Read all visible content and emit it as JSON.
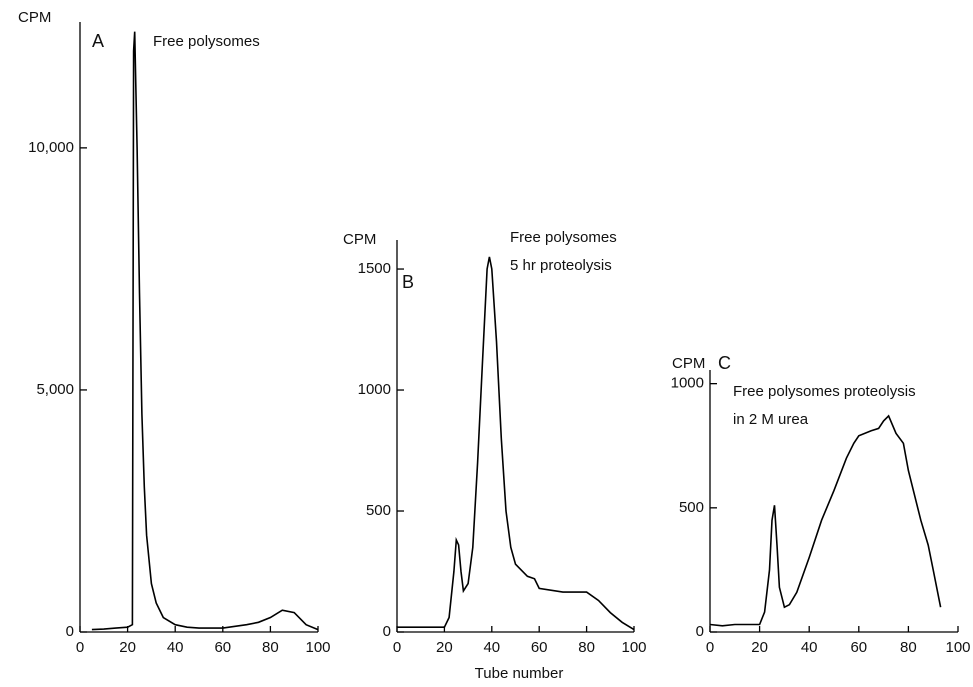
{
  "chart_data": [
    {
      "type": "line",
      "label": "A",
      "ylabel": "CPM",
      "annotations": [
        "Free polysomes"
      ],
      "color": "#000000",
      "x": [
        5,
        10,
        15,
        20,
        22,
        22.5,
        23,
        24,
        25,
        26,
        27,
        28,
        30,
        32,
        35,
        40,
        45,
        50,
        60,
        70,
        75,
        80,
        85,
        90,
        95,
        100
      ],
      "values": [
        50,
        60,
        80,
        100,
        150,
        12000,
        12400,
        10000,
        7000,
        4500,
        3000,
        2000,
        1000,
        600,
        300,
        150,
        100,
        80,
        80,
        150,
        200,
        300,
        450,
        400,
        150,
        50
      ],
      "xlim": [
        0,
        100
      ],
      "xticks": [
        0,
        20,
        40,
        60,
        80,
        100
      ],
      "ylim": [
        0,
        12600
      ],
      "yticks": [
        0,
        {
          "value": 5000,
          "label": "5,000"
        },
        {
          "value": 10000,
          "label": "10,000"
        }
      ]
    },
    {
      "type": "line",
      "label": "B",
      "ylabel": "CPM",
      "annotations": [
        "Free polysomes",
        "5 hr proteolysis"
      ],
      "color": "#000000",
      "xlabel": "Tube number",
      "x": [
        0,
        10,
        20,
        22,
        24,
        25,
        26,
        27,
        28,
        30,
        32,
        34,
        36,
        38,
        39,
        40,
        42,
        44,
        46,
        48,
        50,
        55,
        58,
        60,
        70,
        80,
        85,
        90,
        95,
        100
      ],
      "values": [
        20,
        20,
        20,
        60,
        250,
        380,
        360,
        250,
        170,
        200,
        350,
        700,
        1100,
        1500,
        1550,
        1500,
        1200,
        800,
        500,
        350,
        280,
        230,
        220,
        180,
        165,
        165,
        130,
        80,
        40,
        10
      ],
      "xlim": [
        0,
        100
      ],
      "xticks": [
        0,
        20,
        40,
        60,
        80,
        100
      ],
      "ylim": [
        0,
        1620
      ],
      "yticks": [
        0,
        500,
        1000,
        1500
      ]
    },
    {
      "type": "line",
      "label": "C",
      "ylabel": "CPM",
      "annotations": [
        "Free polysomes proteolysis",
        "in 2 M urea"
      ],
      "color": "#000000",
      "x": [
        0,
        5,
        10,
        15,
        20,
        22,
        24,
        25,
        26,
        27,
        28,
        30,
        32,
        35,
        40,
        45,
        50,
        55,
        58,
        60,
        65,
        68,
        70,
        72,
        75,
        78,
        80,
        85,
        88,
        90,
        93
      ],
      "values": [
        30,
        25,
        30,
        30,
        30,
        80,
        250,
        450,
        510,
        350,
        180,
        100,
        110,
        160,
        300,
        450,
        570,
        700,
        760,
        790,
        810,
        820,
        850,
        870,
        800,
        760,
        650,
        450,
        350,
        250,
        100
      ],
      "xlim": [
        0,
        100
      ],
      "xticks": [
        0,
        20,
        40,
        60,
        80,
        100
      ],
      "ylim": [
        0,
        1055
      ],
      "yticks": [
        0,
        500,
        1000
      ]
    }
  ]
}
